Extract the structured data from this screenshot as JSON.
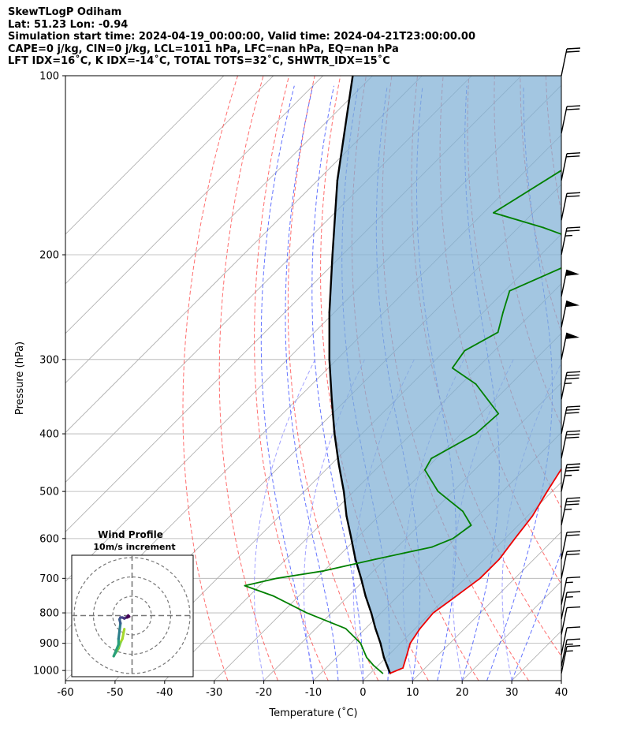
{
  "header": {
    "title": "SkewTLogP Odiham",
    "location": "Lat: 51.23   Lon: -0.94",
    "times": "Simulation start time: 2024-04-19_00:00:00, Valid time: 2024-04-21T23:00:00.00",
    "params": "CAPE=0 j/kg, CIN=0 j/kg, LCL=1011 hPa, LFC=nan hPa, EQ=nan hPa",
    "indices": "LFT IDX=16˚C, K IDX=-14˚C, TOTAL TOTS=32˚C, SHWTR_IDX=15˚C"
  },
  "colors": {
    "temperature": "#ee0000",
    "dewpoint": "#008000",
    "parcel": "#000000",
    "cape_fill": "#7fb0d5",
    "dry_adiabat": "#ff4a4a",
    "moist_adiabat": "#3c50ff",
    "mixing_ratio": "#8a8aff",
    "isotherm": "#aaaaaa"
  },
  "chart_data": {
    "type": "skewt",
    "xlabel": "Temperature (˚C)",
    "ylabel": "Pressure (hPa)",
    "xlim": [
      -60,
      40
    ],
    "ylim": [
      1040,
      100
    ],
    "x_ticks": [
      -60,
      -50,
      -40,
      -30,
      -20,
      -10,
      0,
      10,
      20,
      30,
      40
    ],
    "y_ticks": [
      100,
      200,
      300,
      400,
      500,
      600,
      700,
      800,
      900,
      1000
    ],
    "series": [
      {
        "name": "temperature",
        "points": [
          [
            1011,
            4
          ],
          [
            990,
            5.5
          ],
          [
            950,
            4
          ],
          [
            900,
            2
          ],
          [
            850,
            1
          ],
          [
            800,
            0.5
          ],
          [
            760,
            1.5
          ],
          [
            700,
            3
          ],
          [
            650,
            3
          ],
          [
            600,
            2
          ],
          [
            550,
            1
          ],
          [
            500,
            -1
          ],
          [
            450,
            -3
          ],
          [
            400,
            -5.5
          ],
          [
            350,
            -8.5
          ],
          [
            320,
            -10.5
          ],
          [
            290,
            -12.5
          ],
          [
            260,
            -16
          ],
          [
            240,
            -20
          ],
          [
            225,
            -24.5
          ],
          [
            210,
            -25
          ],
          [
            200,
            -24
          ],
          [
            175,
            -25
          ],
          [
            150,
            -26.5
          ],
          [
            130,
            -28
          ],
          [
            115,
            -33
          ],
          [
            100,
            -36
          ]
        ]
      },
      {
        "name": "dewpoint",
        "points": [
          [
            1011,
            2.5
          ],
          [
            980,
            -1
          ],
          [
            950,
            -4
          ],
          [
            900,
            -8
          ],
          [
            850,
            -14
          ],
          [
            800,
            -25
          ],
          [
            750,
            -35
          ],
          [
            720,
            -43
          ],
          [
            700,
            -38
          ],
          [
            680,
            -30
          ],
          [
            650,
            -22
          ],
          [
            620,
            -13
          ],
          [
            600,
            -10.5
          ],
          [
            570,
            -9.5
          ],
          [
            540,
            -14
          ],
          [
            500,
            -23
          ],
          [
            460,
            -30
          ],
          [
            440,
            -31
          ],
          [
            400,
            -27
          ],
          [
            370,
            -26.5
          ],
          [
            330,
            -37
          ],
          [
            310,
            -45
          ],
          [
            290,
            -46
          ],
          [
            270,
            -43
          ],
          [
            250,
            -46
          ],
          [
            230,
            -49
          ],
          [
            210,
            -43
          ],
          [
            190,
            -44.5
          ],
          [
            180,
            -55
          ],
          [
            170,
            -68
          ],
          [
            145,
            -63
          ],
          [
            130,
            -59.5
          ],
          [
            100,
            -45
          ]
        ]
      },
      {
        "name": "parcel",
        "points": [
          [
            1011,
            4
          ],
          [
            950,
            -0.5
          ],
          [
            900,
            -4
          ],
          [
            850,
            -8
          ],
          [
            800,
            -12
          ],
          [
            750,
            -16.5
          ],
          [
            700,
            -21
          ],
          [
            650,
            -26
          ],
          [
            600,
            -31
          ],
          [
            550,
            -36.5
          ],
          [
            500,
            -42
          ],
          [
            450,
            -48.5
          ],
          [
            400,
            -55.5
          ],
          [
            350,
            -63
          ],
          [
            300,
            -71.5
          ],
          [
            250,
            -81
          ],
          [
            200,
            -92
          ],
          [
            150,
            -106
          ],
          [
            100,
            -124
          ]
        ]
      }
    ],
    "dry_adiabats_theta_c": [
      -30,
      -20,
      -10,
      0,
      10,
      20,
      30,
      40,
      50,
      60,
      70,
      80,
      90,
      100,
      110,
      120,
      130,
      140,
      150
    ],
    "moist_adiabats_start_c": [
      -10,
      -5,
      0,
      5,
      10,
      15,
      20,
      25,
      30
    ],
    "mixing_ratio_lines_c": [
      -20,
      -10,
      0,
      10,
      20,
      30
    ],
    "shaded_area": "CAPE/CIN region between parcel and temperature profile",
    "wind_barbs": {
      "levels_hpa": [
        100,
        125,
        150,
        175,
        200,
        235,
        265,
        300,
        350,
        400,
        440,
        500,
        570,
        650,
        700,
        775,
        820,
        870,
        940,
        985,
        1011
      ],
      "speeds_kt": [
        20,
        20,
        20,
        20,
        25,
        50,
        50,
        50,
        35,
        30,
        30,
        35,
        35,
        20,
        20,
        15,
        15,
        10,
        10,
        15,
        15
      ]
    },
    "hodograph": {
      "title": "Wind Profile",
      "subtitle": "10m/s increment",
      "ring_values_ms": [
        10,
        20,
        30
      ],
      "points_ms": [
        [
          -4,
          -7
        ],
        [
          -5,
          -12
        ],
        [
          -6,
          -14
        ],
        [
          -7,
          -17
        ],
        [
          -8,
          -18.5
        ],
        [
          -9,
          -20
        ],
        [
          -9.5,
          -21
        ],
        [
          -7,
          -15
        ],
        [
          -7,
          -12
        ],
        [
          -6.5,
          -8
        ],
        [
          -6,
          -4
        ],
        [
          -6.5,
          -2
        ],
        [
          -6,
          -1
        ],
        [
          -5,
          -1
        ],
        [
          -4,
          -1.5
        ],
        [
          -3,
          -1
        ],
        [
          -2,
          0
        ],
        [
          -1.5,
          -0.5
        ],
        [
          -2.5,
          -1
        ]
      ]
    }
  }
}
